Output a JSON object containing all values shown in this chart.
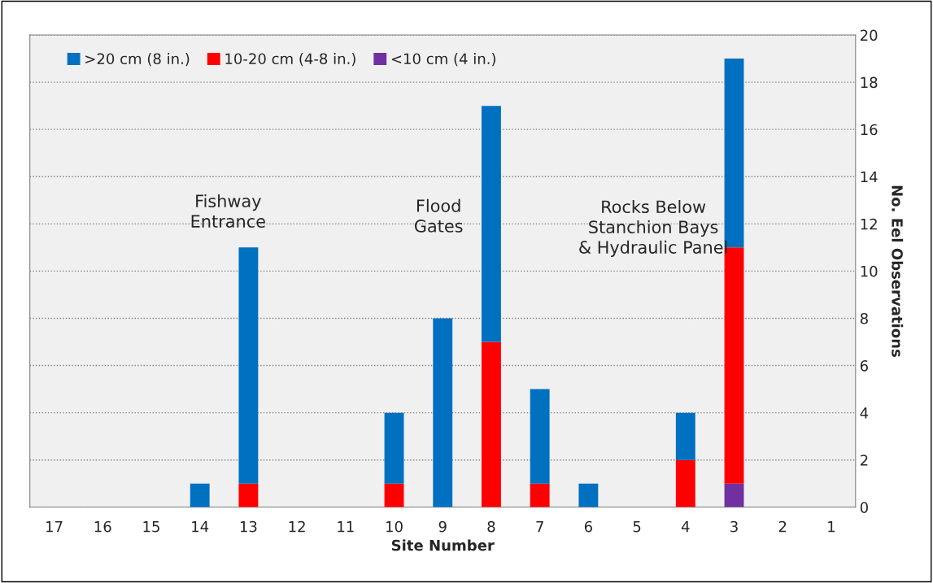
{
  "chart_data": {
    "type": "bar",
    "stacked": true,
    "xlabel": "Site Number",
    "ylabel": "No. Eel Observations",
    "categories": [
      "17",
      "16",
      "15",
      "14",
      "13",
      "12",
      "11",
      "10",
      "9",
      "8",
      "7",
      "6",
      "5",
      "4",
      "3",
      "2",
      "1"
    ],
    "series": [
      {
        "name": "<10 cm (4 in.)",
        "color": "#7030a0",
        "values": [
          0,
          0,
          0,
          0,
          0,
          0,
          0,
          0,
          0,
          0,
          0,
          0,
          0,
          0,
          1,
          0,
          0
        ]
      },
      {
        "name": "10-20 cm (4-8 in.)",
        "color": "#ff0000",
        "values": [
          0,
          0,
          0,
          0,
          1,
          0,
          0,
          1,
          0,
          7,
          1,
          0,
          0,
          2,
          10,
          0,
          0
        ]
      },
      {
        "name": ">20 cm (8 in.)",
        "color": "#0070c0",
        "values": [
          0,
          0,
          0,
          1,
          10,
          0,
          0,
          3,
          8,
          10,
          4,
          1,
          0,
          2,
          8,
          0,
          0
        ]
      }
    ],
    "ylim": [
      0,
      20
    ],
    "yticks": [
      0,
      2,
      4,
      6,
      8,
      10,
      12,
      14,
      16,
      18,
      20
    ],
    "grid": "y",
    "legend": "top left",
    "annotations": [
      "Fishway\nEntrance",
      "Flood\nGates",
      "Rocks Below\nStanchion Bays\n& Hydraulic Panel"
    ]
  }
}
